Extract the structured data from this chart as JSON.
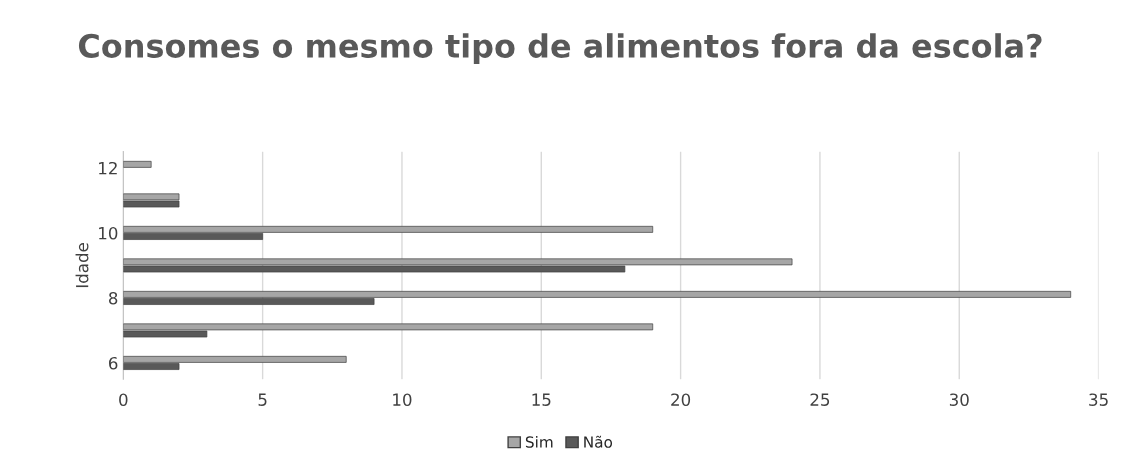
{
  "chart_data": {
    "type": "bar",
    "orientation": "horizontal",
    "title": "Consomes o mesmo tipo de alimentos fora da escola?",
    "ylabel": "Idade",
    "categories": [
      "12",
      null,
      "10",
      null,
      "8",
      null,
      "6"
    ],
    "series": [
      {
        "name": "Sim",
        "color": "#a6a6a6",
        "values": [
          1,
          2,
          19,
          24,
          34,
          19,
          8
        ]
      },
      {
        "name": "Não",
        "color": "#595959",
        "values": [
          null,
          2,
          5,
          18,
          9,
          3,
          2
        ]
      }
    ],
    "xlim": [
      0,
      35
    ],
    "xticks": [
      0,
      5,
      10,
      15,
      20,
      25,
      30,
      35
    ],
    "grid": "x",
    "legend": "bottom"
  }
}
